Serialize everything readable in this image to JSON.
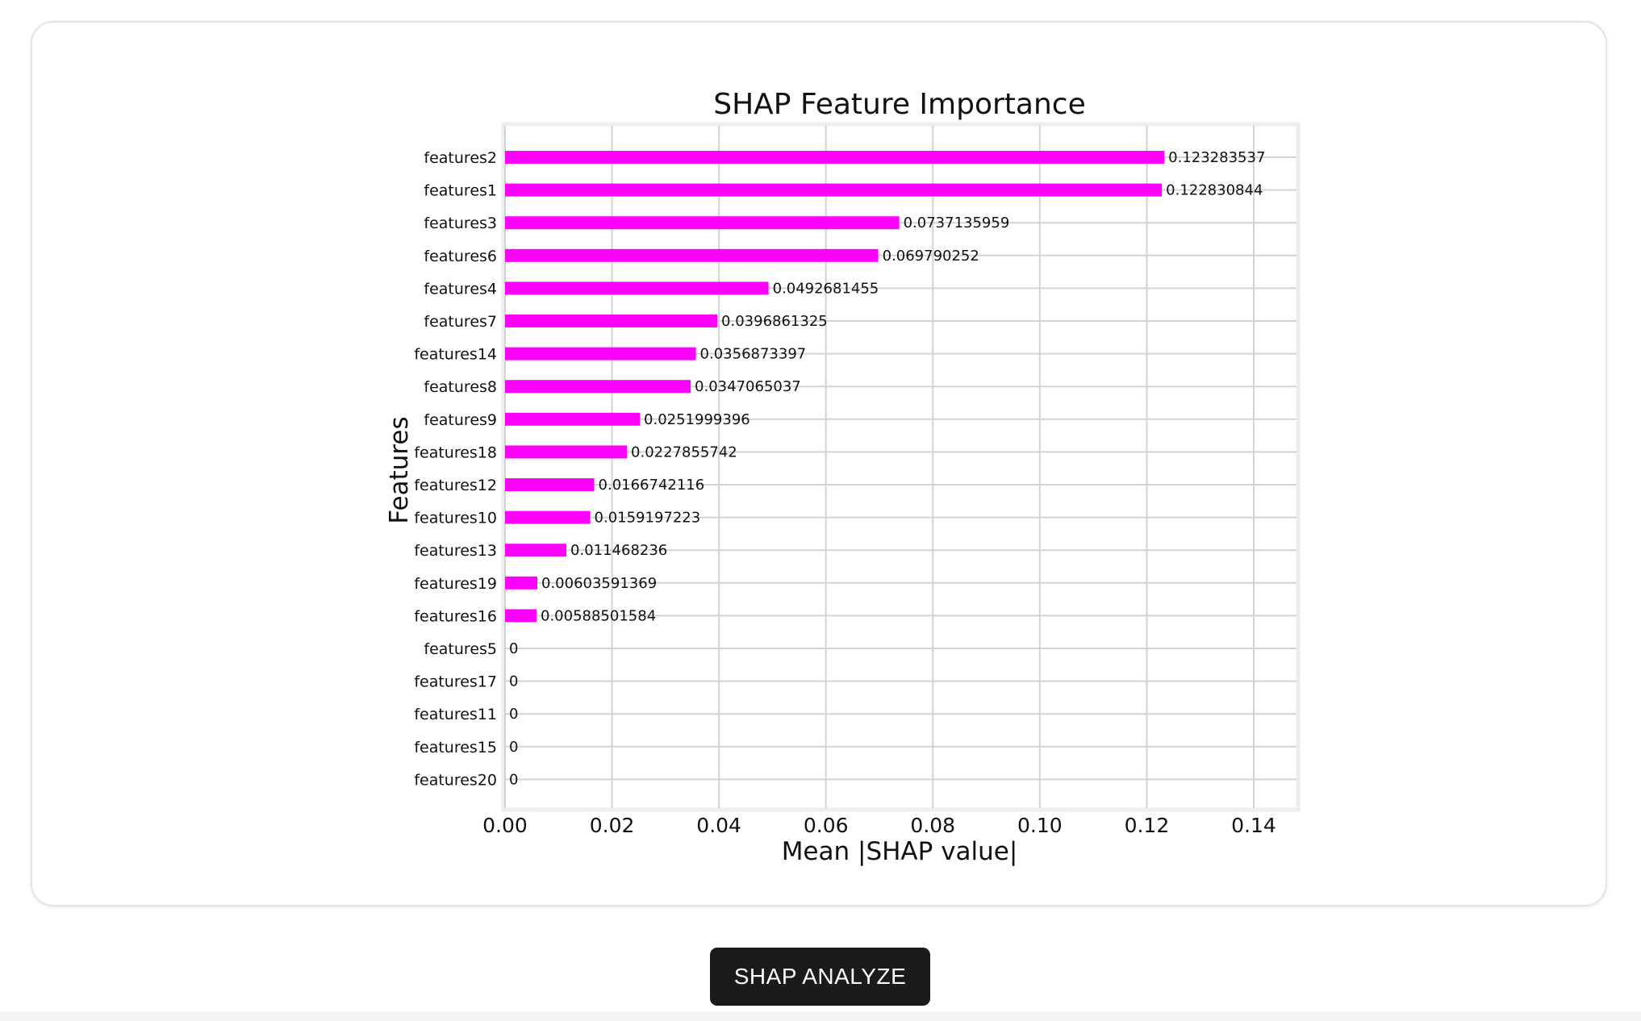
{
  "chart_data": {
    "type": "bar",
    "orientation": "horizontal",
    "title": "SHAP Feature Importance",
    "xlabel": "Mean |SHAP value|",
    "ylabel": "Features",
    "xlim": [
      0,
      0.148
    ],
    "xticks": [
      "0.00",
      "0.02",
      "0.04",
      "0.06",
      "0.08",
      "0.10",
      "0.12",
      "0.14"
    ],
    "xtick_values": [
      0,
      0.02,
      0.04,
      0.06,
      0.08,
      0.1,
      0.12,
      0.14
    ],
    "grid": true,
    "bar_color": "#ff00ff",
    "categories": [
      "features2",
      "features1",
      "features3",
      "features6",
      "features4",
      "features7",
      "features14",
      "features8",
      "features9",
      "features18",
      "features12",
      "features10",
      "features13",
      "features19",
      "features16",
      "features5",
      "features17",
      "features11",
      "features15",
      "features20"
    ],
    "values": [
      0.123283537,
      0.122830844,
      0.0737135959,
      0.069790252,
      0.0492681455,
      0.0396861325,
      0.0356873397,
      0.0347065037,
      0.0251999396,
      0.0227855742,
      0.0166742116,
      0.0159197223,
      0.011468236,
      0.00603591369,
      0.00588501584,
      0,
      0,
      0,
      0,
      0
    ],
    "value_labels": [
      "0.123283537",
      "0.122830844",
      "0.0737135959",
      "0.069790252",
      "0.0492681455",
      "0.0396861325",
      "0.0356873397",
      "0.0347065037",
      "0.0251999396",
      "0.0227855742",
      "0.0166742116",
      "0.0159197223",
      "0.011468236",
      "0.00603591369",
      "0.00588501584",
      "0",
      "0",
      "0",
      "0",
      "0"
    ]
  },
  "button": {
    "label": "SHAP ANALYZE"
  }
}
